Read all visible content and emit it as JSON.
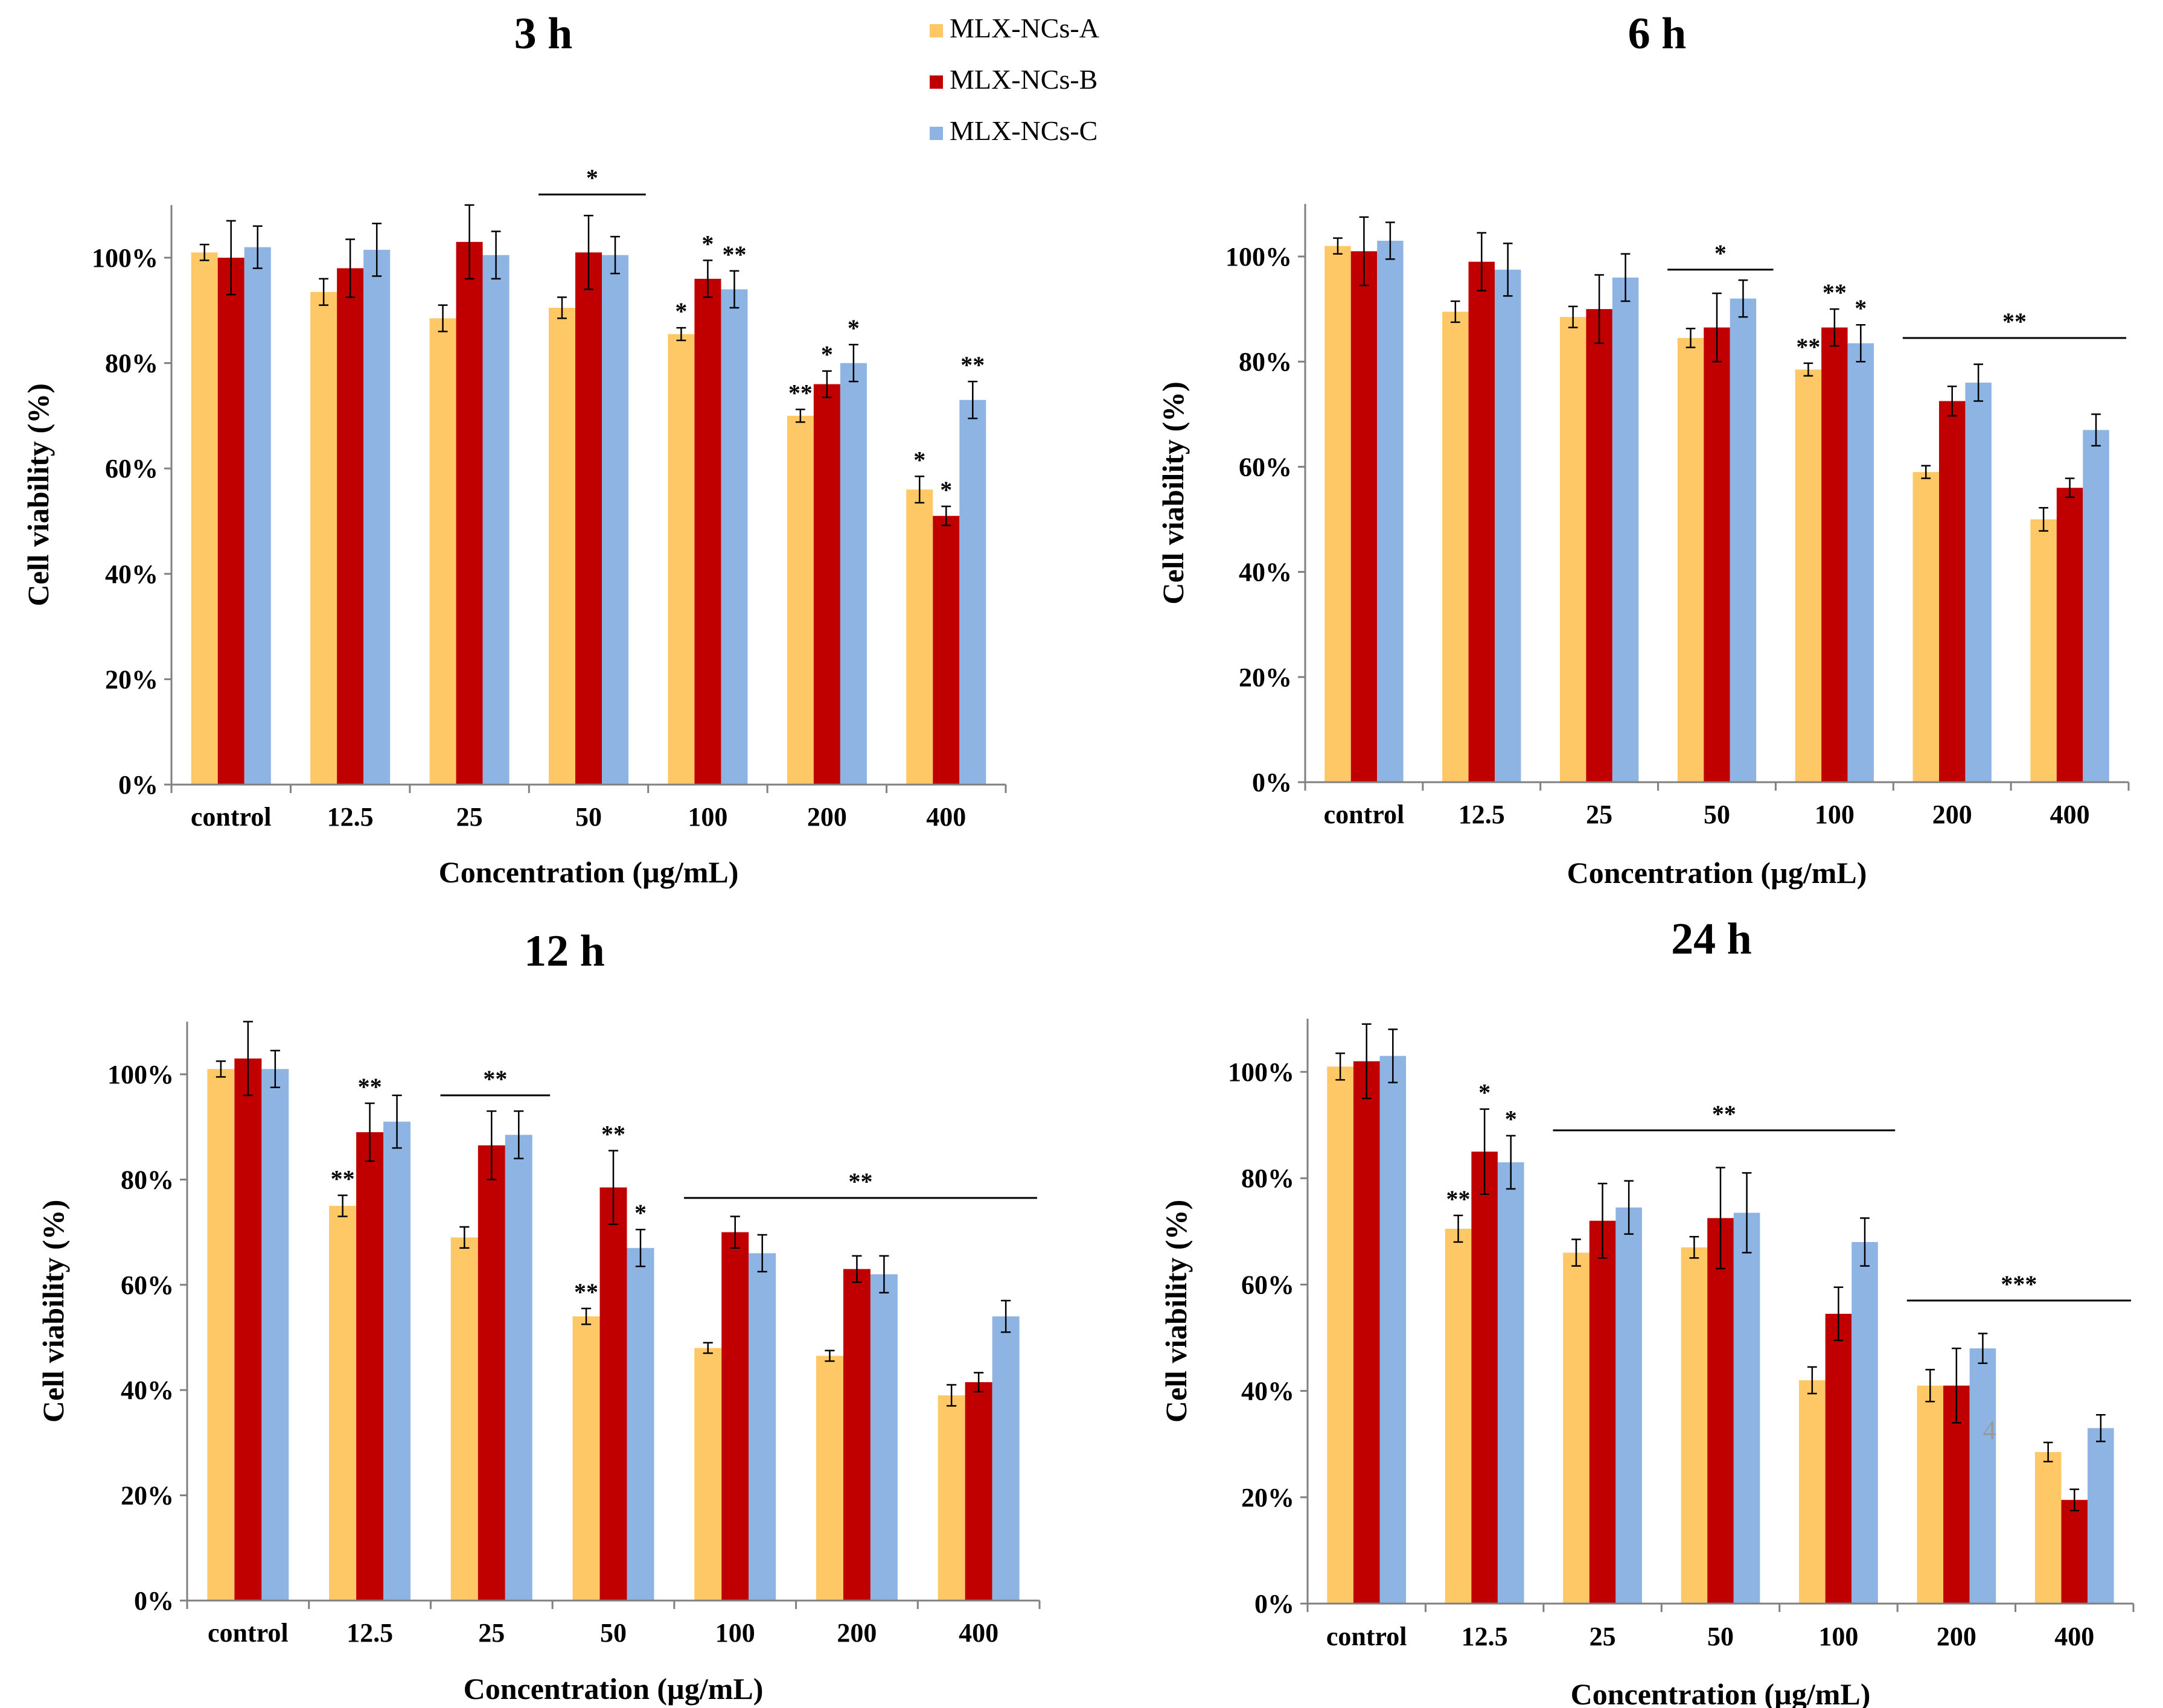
{
  "chart_data": {
    "legend": [
      {
        "name": "MLX-NCs-A",
        "color": "#FFC866"
      },
      {
        "name": "MLX-NCs-B",
        "color": "#C00000"
      },
      {
        "name": "MLX-NCs-C",
        "color": "#8EB4E3"
      }
    ],
    "panels": [
      {
        "type": "bar",
        "title": "3 h",
        "xlabel": "Concentration (µg/mL)",
        "ylabel": "Cell viability (%)",
        "ylim": [
          0,
          110
        ],
        "yticks": [
          "0%",
          "20%",
          "40%",
          "60%",
          "80%",
          "100%"
        ],
        "categories": [
          "control",
          "12.5",
          "25",
          "50",
          "100",
          "200",
          "400"
        ],
        "series": [
          {
            "name": "MLX-NCs-A",
            "values": [
              101,
              93.5,
              88.5,
              90.5,
              85.5,
              70,
              56
            ],
            "errors": [
              1.5,
              2.5,
              2.5,
              2,
              1.2,
              1.2,
              2.5
            ]
          },
          {
            "name": "MLX-NCs-B",
            "values": [
              100,
              98,
              103,
              101,
              96,
              76,
              51
            ],
            "errors": [
              7,
              5.5,
              7,
              7,
              3.5,
              2.5,
              1.8
            ]
          },
          {
            "name": "MLX-NCs-C",
            "values": [
              102,
              101.5,
              100.5,
              100.5,
              94,
              80,
              73
            ],
            "errors": [
              4,
              5,
              4.5,
              3.5,
              3.5,
              3.5,
              3.5
            ]
          }
        ],
        "significance": [
          {
            "text": "*",
            "category": 4,
            "series": 0
          },
          {
            "text": "*",
            "category": 4,
            "series": 1
          },
          {
            "text": "**",
            "category": 4,
            "series": 2
          },
          {
            "text": "**",
            "category": 5,
            "series": 0
          },
          {
            "text": "*",
            "category": 5,
            "series": 1
          },
          {
            "text": "*",
            "category": 5,
            "series": 2
          },
          {
            "text": "*",
            "category": 6,
            "series": 0
          },
          {
            "text": "*",
            "category": 6,
            "series": 1
          },
          {
            "text": "**",
            "category": 6,
            "series": 2
          }
        ],
        "brackets": [
          {
            "text": "*",
            "from_category": 3,
            "to_category": 3,
            "level": 112
          }
        ]
      },
      {
        "type": "bar",
        "title": "6 h",
        "xlabel": "Concentration (µg/mL)",
        "ylabel": "Cell viability (%)",
        "ylim": [
          0,
          110
        ],
        "yticks": [
          "0%",
          "20%",
          "40%",
          "60%",
          "80%",
          "100%"
        ],
        "categories": [
          "control",
          "12.5",
          "25",
          "50",
          "100",
          "200",
          "400"
        ],
        "series": [
          {
            "name": "MLX-NCs-A",
            "values": [
              102,
              89.5,
              88.5,
              84.5,
              78.5,
              59,
              50
            ],
            "errors": [
              1.5,
              2,
              2,
              1.8,
              1.2,
              1.2,
              2.2
            ]
          },
          {
            "name": "MLX-NCs-B",
            "values": [
              101,
              99,
              90,
              86.5,
              86.5,
              72.5,
              56
            ],
            "errors": [
              6.5,
              5.5,
              6.5,
              6.5,
              3.5,
              2.8,
              1.8
            ]
          },
          {
            "name": "MLX-NCs-C",
            "values": [
              103,
              97.5,
              96,
              92,
              83.5,
              76,
              67
            ],
            "errors": [
              3.5,
              5,
              4.5,
              3.5,
              3.5,
              3.5,
              3
            ]
          }
        ],
        "significance": [
          {
            "text": "**",
            "category": 4,
            "series": 0
          },
          {
            "text": "**",
            "category": 4,
            "series": 1
          },
          {
            "text": "*",
            "category": 4,
            "series": 2
          }
        ],
        "brackets": [
          {
            "text": "*",
            "from_category": 3,
            "to_category": 3,
            "level": 97.5
          },
          {
            "text": "**",
            "from_category": 5,
            "to_category": 6,
            "level": 84.5
          }
        ]
      },
      {
        "type": "bar",
        "title": "12 h",
        "xlabel": "Concentration (µg/mL)",
        "ylabel": "Cell viability (%)",
        "ylim": [
          0,
          110
        ],
        "yticks": [
          "0%",
          "20%",
          "40%",
          "60%",
          "80%",
          "100%"
        ],
        "categories": [
          "control",
          "12.5",
          "25",
          "50",
          "100",
          "200",
          "400"
        ],
        "series": [
          {
            "name": "MLX-NCs-A",
            "values": [
              101,
              75,
              69,
              54,
              48,
              46.5,
              39
            ],
            "errors": [
              1.5,
              2,
              2,
              1.5,
              1,
              1,
              2
            ]
          },
          {
            "name": "MLX-NCs-B",
            "values": [
              103,
              89,
              86.5,
              78.5,
              70,
              63,
              41.5
            ],
            "errors": [
              7,
              5.5,
              6.5,
              7,
              3,
              2.5,
              1.8
            ]
          },
          {
            "name": "MLX-NCs-C",
            "values": [
              101,
              91,
              88.5,
              67,
              66,
              62,
              54
            ],
            "errors": [
              3.5,
              5,
              4.5,
              3.5,
              3.5,
              3.5,
              3
            ]
          }
        ],
        "significance": [
          {
            "text": "**",
            "category": 1,
            "series": 0
          },
          {
            "text": "**",
            "category": 1,
            "series": 1
          },
          {
            "text": "**",
            "category": 3,
            "series": 0
          },
          {
            "text": "**",
            "category": 3,
            "series": 1
          },
          {
            "text": "*",
            "category": 3,
            "series": 2
          }
        ],
        "brackets": [
          {
            "text": "**",
            "from_category": 2,
            "to_category": 2,
            "level": 96
          },
          {
            "text": "**",
            "from_category": 4,
            "to_category": 6,
            "level": 76.5
          }
        ]
      },
      {
        "type": "bar",
        "title": "24 h",
        "xlabel": "Concentration (µg/mL)",
        "ylabel": "Cell viability (%)",
        "ylim": [
          0,
          110
        ],
        "yticks": [
          "0%",
          "20%",
          "40%",
          "60%",
          "80%",
          "100%"
        ],
        "categories": [
          "control",
          "12.5",
          "25",
          "50",
          "100",
          "200",
          "400"
        ],
        "series": [
          {
            "name": "MLX-NCs-A",
            "values": [
              101,
              70.5,
              66,
              67,
              42,
              41,
              28.5
            ],
            "errors": [
              2.5,
              2.5,
              2.5,
              2,
              2.5,
              3,
              1.8
            ]
          },
          {
            "name": "MLX-NCs-B",
            "values": [
              102,
              85,
              72,
              72.5,
              54.5,
              41,
              19.5
            ],
            "errors": [
              7,
              8,
              7,
              9.5,
              5,
              7,
              2
            ]
          },
          {
            "name": "MLX-NCs-C",
            "values": [
              103,
              83,
              74.5,
              73.5,
              68,
              48,
              33
            ],
            "errors": [
              5,
              5,
              5,
              7.5,
              4.5,
              2.8,
              2.5
            ]
          }
        ],
        "significance": [
          {
            "text": "**",
            "category": 1,
            "series": 0
          },
          {
            "text": "*",
            "category": 1,
            "series": 1
          },
          {
            "text": "*",
            "category": 1,
            "series": 2
          }
        ],
        "brackets": [
          {
            "text": "**",
            "from_category": 2,
            "to_category": 4,
            "level": 89
          },
          {
            "text": "***",
            "from_category": 5,
            "to_category": 6,
            "level": 57
          }
        ],
        "stray_marks": [
          {
            "text": "4"
          }
        ]
      }
    ]
  }
}
